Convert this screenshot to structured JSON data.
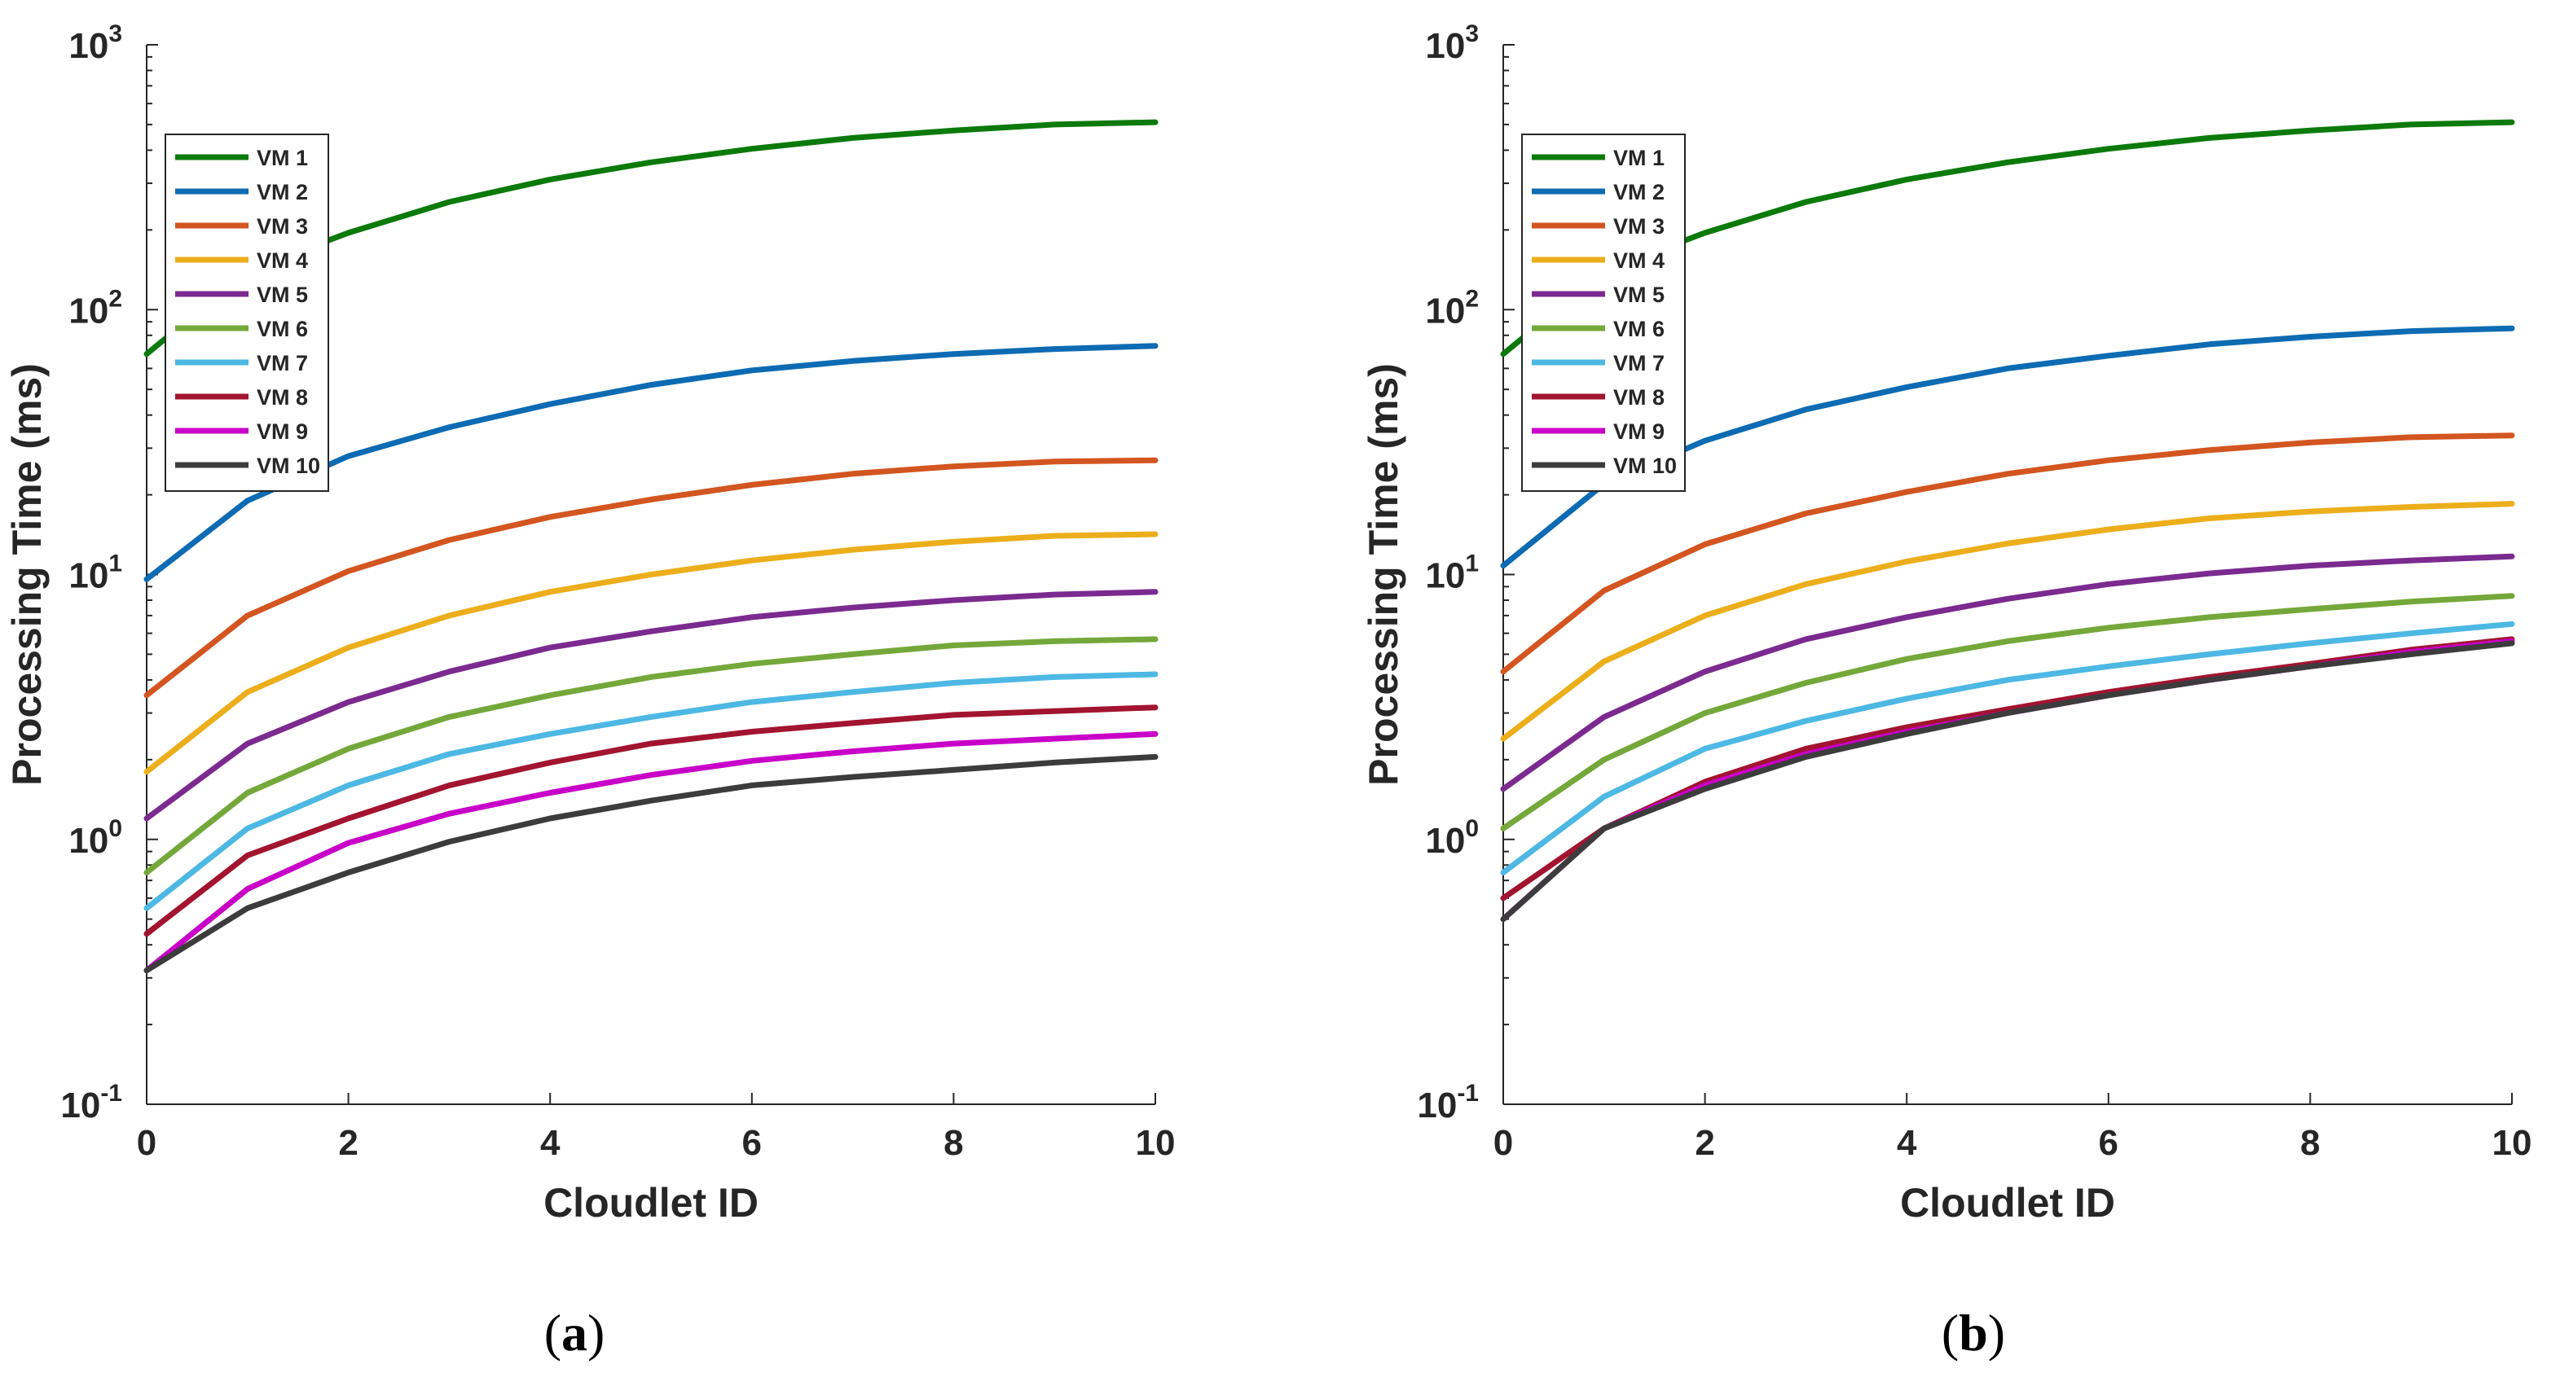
{
  "chart_data": [
    {
      "type": "line",
      "panel": "a",
      "caption_open": "(",
      "caption_letter": "a",
      "caption_close": ")",
      "title": "",
      "xlabel": "Cloudlet ID",
      "ylabel": "Processing Time (ms)",
      "yscale": "log",
      "xlim": [
        0,
        10
      ],
      "ylim": [
        0.1,
        1000
      ],
      "xticks": [
        0,
        2,
        4,
        6,
        8,
        10
      ],
      "xtick_labels": [
        "0",
        "2",
        "4",
        "6",
        "8",
        "10"
      ],
      "yticks": [
        0.1,
        1,
        10,
        100,
        1000
      ],
      "ytick_bases": [
        "10",
        "10",
        "10",
        "10",
        "10"
      ],
      "ytick_exponents": [
        "-1",
        "0",
        "1",
        "2",
        "3"
      ],
      "legend_position": "top-left",
      "x": [
        0,
        1,
        2,
        3,
        4,
        5,
        6,
        7,
        8,
        9,
        10
      ],
      "series": [
        {
          "name": "VM 1",
          "color": "#0b7a0b",
          "values": [
            68,
            140,
            195,
            255,
            310,
            360,
            405,
            445,
            475,
            500,
            510
          ]
        },
        {
          "name": "VM 2",
          "color": "#0c6bb3",
          "values": [
            9.6,
            19,
            28,
            36,
            44,
            52,
            59,
            64,
            68,
            71,
            73
          ]
        },
        {
          "name": "VM 3",
          "color": "#d35520",
          "values": [
            3.5,
            7,
            10.3,
            13.5,
            16.5,
            19.2,
            21.8,
            24,
            25.6,
            26.7,
            27
          ]
        },
        {
          "name": "VM 4",
          "color": "#ecae1b",
          "values": [
            1.8,
            3.6,
            5.3,
            7,
            8.6,
            10,
            11.3,
            12.4,
            13.3,
            14,
            14.2
          ]
        },
        {
          "name": "VM 5",
          "color": "#7b2a8f",
          "values": [
            1.2,
            2.3,
            3.3,
            4.3,
            5.3,
            6.1,
            6.9,
            7.5,
            8.0,
            8.4,
            8.6
          ]
        },
        {
          "name": "VM 6",
          "color": "#74a83a",
          "values": [
            0.75,
            1.5,
            2.2,
            2.9,
            3.5,
            4.1,
            4.6,
            5.0,
            5.4,
            5.6,
            5.7
          ]
        },
        {
          "name": "VM 7",
          "color": "#4db8e3",
          "values": [
            0.55,
            1.1,
            1.6,
            2.1,
            2.5,
            2.9,
            3.3,
            3.6,
            3.9,
            4.1,
            4.2
          ]
        },
        {
          "name": "VM 8",
          "color": "#a2142f",
          "values": [
            0.44,
            0.87,
            1.2,
            1.6,
            1.95,
            2.3,
            2.55,
            2.75,
            2.95,
            3.05,
            3.15
          ]
        },
        {
          "name": "VM 9",
          "color": "#c800c8",
          "values": [
            0.32,
            0.65,
            0.97,
            1.25,
            1.5,
            1.75,
            1.98,
            2.15,
            2.3,
            2.4,
            2.5
          ]
        },
        {
          "name": "VM 10",
          "color": "#3c3c3c",
          "values": [
            0.32,
            0.55,
            0.75,
            0.98,
            1.2,
            1.4,
            1.6,
            1.72,
            1.83,
            1.95,
            2.05
          ]
        }
      ]
    },
    {
      "type": "line",
      "panel": "b",
      "caption_open": "(",
      "caption_letter": "b",
      "caption_close": ")",
      "title": "",
      "xlabel": "Cloudlet ID",
      "ylabel": "Processing Time (ms)",
      "yscale": "log",
      "xlim": [
        0,
        10
      ],
      "ylim": [
        0.1,
        1000
      ],
      "xticks": [
        0,
        2,
        4,
        6,
        8,
        10
      ],
      "xtick_labels": [
        "0",
        "2",
        "4",
        "6",
        "8",
        "10"
      ],
      "yticks": [
        0.1,
        1,
        10,
        100,
        1000
      ],
      "ytick_bases": [
        "10",
        "10",
        "10",
        "10",
        "10"
      ],
      "ytick_exponents": [
        "-1",
        "0",
        "1",
        "2",
        "3"
      ],
      "legend_position": "top-left",
      "x": [
        0,
        1,
        2,
        3,
        4,
        5,
        6,
        7,
        8,
        9,
        10
      ],
      "series": [
        {
          "name": "VM 1",
          "color": "#0b7a0b",
          "values": [
            68,
            140,
            195,
            255,
            310,
            360,
            405,
            445,
            475,
            500,
            510
          ]
        },
        {
          "name": "VM 2",
          "color": "#0c6bb3",
          "values": [
            10.8,
            22,
            32,
            42,
            51,
            60,
            67,
            74,
            79,
            83,
            85
          ]
        },
        {
          "name": "VM 3",
          "color": "#d35520",
          "values": [
            4.3,
            8.7,
            13,
            17,
            20.5,
            24,
            27,
            29.5,
            31.5,
            33,
            33.5
          ]
        },
        {
          "name": "VM 4",
          "color": "#ecae1b",
          "values": [
            2.4,
            4.7,
            7,
            9.2,
            11.2,
            13.1,
            14.8,
            16.3,
            17.3,
            18,
            18.5
          ]
        },
        {
          "name": "VM 5",
          "color": "#7b2a8f",
          "values": [
            1.55,
            2.9,
            4.3,
            5.7,
            6.9,
            8.1,
            9.2,
            10.1,
            10.8,
            11.3,
            11.7
          ]
        },
        {
          "name": "VM 6",
          "color": "#74a83a",
          "values": [
            1.1,
            2.0,
            3.0,
            3.9,
            4.8,
            5.6,
            6.3,
            6.9,
            7.4,
            7.9,
            8.3
          ]
        },
        {
          "name": "VM 7",
          "color": "#4db8e3",
          "values": [
            0.75,
            1.45,
            2.2,
            2.8,
            3.4,
            4.0,
            4.5,
            5.0,
            5.5,
            6.0,
            6.5
          ]
        },
        {
          "name": "VM 8",
          "color": "#a2142f",
          "values": [
            0.6,
            1.1,
            1.65,
            2.2,
            2.65,
            3.1,
            3.6,
            4.1,
            4.6,
            5.2,
            5.7
          ]
        },
        {
          "name": "VM 9",
          "color": "#c800c8",
          "values": [
            0.5,
            1.1,
            1.6,
            2.1,
            2.55,
            3.0,
            3.5,
            4.0,
            4.5,
            5.1,
            5.6
          ]
        },
        {
          "name": "VM 10",
          "color": "#3c3c3c",
          "values": [
            0.5,
            1.1,
            1.55,
            2.05,
            2.5,
            3.0,
            3.5,
            4.0,
            4.5,
            5.0,
            5.5
          ]
        }
      ]
    }
  ]
}
